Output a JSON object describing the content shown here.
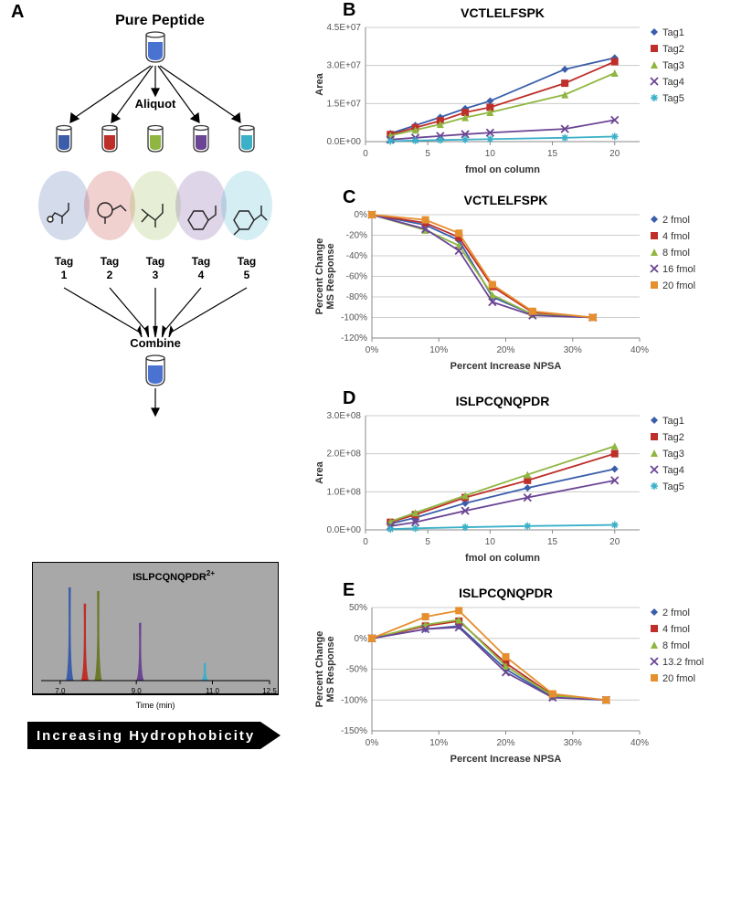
{
  "palette": {
    "tag1": "#3a5eaa",
    "tag2": "#be2f2a",
    "tag3": "#8fb641",
    "tag4": "#6b4594",
    "tag5": "#3bb0c8",
    "axis": "#888888",
    "grid": "#d0d0d0",
    "bg": "#ffffff",
    "chromo_bg": "#a8a8a8"
  },
  "markers": {
    "tag1": "diamond",
    "tag2": "square",
    "tag3": "triangle",
    "tag4": "x",
    "tag5": "asterisk"
  },
  "panelA": {
    "label": "A",
    "title": "Pure Peptide",
    "aliquot_label": "Aliquot",
    "tags": [
      "Tag 1",
      "Tag 2",
      "Tag 3",
      "Tag 4",
      "Tag 5"
    ],
    "combine_label": "Combine",
    "chromo_title": "ISLPCQNQPDR",
    "chromo_charge": "2+",
    "chromo_xlabel": "Time (min)",
    "chromo_xticks": [
      "7.0",
      "9.0",
      "11.0",
      "12.5"
    ],
    "chromo_peaks": [
      {
        "x": 7.25,
        "h": 0.97,
        "color": "#3a5eaa"
      },
      {
        "x": 7.65,
        "h": 0.8,
        "color": "#be2f2a"
      },
      {
        "x": 8.0,
        "h": 0.93,
        "color": "#6b7a2a"
      },
      {
        "x": 9.1,
        "h": 0.6,
        "color": "#6b4594"
      },
      {
        "x": 10.8,
        "h": 0.18,
        "color": "#3bb0c8"
      }
    ],
    "arrow_text": "Increasing   Hydrophobicity"
  },
  "panelB": {
    "label": "B",
    "title": "VCTLELFSPK",
    "xlabel": "fmol on column",
    "ylabel": "Area",
    "xlim": [
      0,
      22
    ],
    "xticks": [
      0,
      5,
      10,
      15,
      20
    ],
    "ylim": [
      0,
      45000000.0
    ],
    "yticks": [
      0,
      15000000.0,
      30000000.0,
      45000000.0
    ],
    "ytick_labels": [
      "0.0E+00",
      "1.5E+07",
      "3.0E+07",
      "4.5E+07"
    ],
    "legend": [
      "Tag1",
      "Tag2",
      "Tag3",
      "Tag4",
      "Tag5"
    ],
    "legend_colors": [
      "#3a5eaa",
      "#be2f2a",
      "#8fb641",
      "#6b4594",
      "#3bb0c8"
    ],
    "legend_markers": [
      "diamond",
      "square",
      "triangle",
      "x",
      "asterisk"
    ],
    "series": [
      {
        "name": "Tag1",
        "color": "#3a5eaa",
        "marker": "diamond",
        "x": [
          2,
          4,
          6,
          8,
          10,
          16,
          20
        ],
        "y": [
          3200000.0,
          6400000.0,
          9600000.0,
          13000000.0,
          16000000.0,
          28500000.0,
          33000000.0
        ]
      },
      {
        "name": "Tag2",
        "color": "#be2f2a",
        "marker": "square",
        "x": [
          2,
          4,
          6,
          8,
          10,
          16,
          20
        ],
        "y": [
          2800000.0,
          5500000.0,
          8200000.0,
          11500000.0,
          13500000.0,
          23000000.0,
          31500000.0
        ]
      },
      {
        "name": "Tag3",
        "color": "#8fb641",
        "marker": "triangle",
        "x": [
          2,
          4,
          6,
          8,
          10,
          16,
          20
        ],
        "y": [
          2400000.0,
          4600000.0,
          6800000.0,
          9500000.0,
          11500000.0,
          18500000.0,
          27000000.0
        ]
      },
      {
        "name": "Tag4",
        "color": "#6b4594",
        "marker": "x",
        "x": [
          2,
          4,
          6,
          8,
          10,
          16,
          20
        ],
        "y": [
          800000.0,
          1500000.0,
          2200000.0,
          2900000.0,
          3500000.0,
          5000000.0,
          8500000.0
        ]
      },
      {
        "name": "Tag5",
        "color": "#3bb0c8",
        "marker": "asterisk",
        "x": [
          2,
          4,
          6,
          8,
          10,
          16,
          20
        ],
        "y": [
          200000.0,
          400000.0,
          600000.0,
          800000.0,
          1000000.0,
          1500000.0,
          2000000.0
        ]
      }
    ]
  },
  "panelC": {
    "label": "C",
    "title": "VCTLELFSPK",
    "xlabel": "Percent Increase NPSA",
    "ylabel": "Percent Change MS Response",
    "xlim": [
      0,
      40
    ],
    "xticks": [
      0,
      10,
      20,
      30,
      40
    ],
    "xtick_labels": [
      "0%",
      "10%",
      "20%",
      "30%",
      "40%"
    ],
    "ylim": [
      -120,
      0
    ],
    "yticks": [
      0,
      -20,
      -40,
      -60,
      -80,
      -100,
      -120
    ],
    "ytick_labels": [
      "0%",
      "-20%",
      "-40%",
      "-60%",
      "-80%",
      "-100%",
      "-120%"
    ],
    "legend": [
      "2 fmol",
      "4 fmol",
      "8 fmol",
      "16 fmol",
      "20 fmol"
    ],
    "legend_colors": [
      "#3a5eaa",
      "#be2f2a",
      "#8fb641",
      "#6b4594",
      "#e58f2e"
    ],
    "legend_markers": [
      "diamond",
      "square",
      "triangle",
      "x",
      "square"
    ],
    "series": [
      {
        "name": "2 fmol",
        "color": "#3a5eaa",
        "marker": "diamond",
        "x": [
          0,
          8,
          13,
          18,
          24,
          33
        ],
        "y": [
          0,
          -10,
          -25,
          -80,
          -97,
          -100
        ]
      },
      {
        "name": "4 fmol",
        "color": "#be2f2a",
        "marker": "square",
        "x": [
          0,
          8,
          13,
          18,
          24,
          33
        ],
        "y": [
          0,
          -8,
          -22,
          -70,
          -95,
          -100
        ]
      },
      {
        "name": "8 fmol",
        "color": "#8fb641",
        "marker": "triangle",
        "x": [
          0,
          8,
          13,
          18,
          24,
          33
        ],
        "y": [
          0,
          -15,
          -30,
          -78,
          -97,
          -100
        ]
      },
      {
        "name": "16 fmol",
        "color": "#6b4594",
        "marker": "x",
        "x": [
          0,
          8,
          13,
          18,
          24,
          33
        ],
        "y": [
          0,
          -14,
          -35,
          -85,
          -98,
          -100
        ]
      },
      {
        "name": "20 fmol",
        "color": "#e58f2e",
        "marker": "square",
        "x": [
          0,
          8,
          13,
          18,
          24,
          33
        ],
        "y": [
          0,
          -5,
          -18,
          -68,
          -94,
          -100
        ]
      }
    ]
  },
  "panelD": {
    "label": "D",
    "title": "ISLPCQNQPDR",
    "xlabel": "fmol on column",
    "ylabel": "Area",
    "xlim": [
      0,
      22
    ],
    "xticks": [
      0,
      5,
      10,
      15,
      20
    ],
    "ylim": [
      0,
      300000000.0
    ],
    "yticks": [
      0,
      100000000.0,
      200000000.0,
      300000000.0
    ],
    "ytick_labels": [
      "0.0E+00",
      "1.0E+08",
      "2.0E+08",
      "3.0E+08"
    ],
    "legend": [
      "Tag1",
      "Tag2",
      "Tag3",
      "Tag4",
      "Tag5"
    ],
    "legend_colors": [
      "#3a5eaa",
      "#be2f2a",
      "#8fb641",
      "#6b4594",
      "#3bb0c8"
    ],
    "legend_markers": [
      "diamond",
      "square",
      "triangle",
      "x",
      "asterisk"
    ],
    "series": [
      {
        "name": "Tag1",
        "color": "#3a5eaa",
        "marker": "diamond",
        "x": [
          2,
          4,
          8,
          13,
          20
        ],
        "y": [
          16000000.0,
          32000000.0,
          70000000.0,
          110000000.0,
          160000000.0
        ]
      },
      {
        "name": "Tag2",
        "color": "#be2f2a",
        "marker": "square",
        "x": [
          2,
          4,
          8,
          13,
          20
        ],
        "y": [
          20000000.0,
          40000000.0,
          85000000.0,
          130000000.0,
          200000000.0
        ]
      },
      {
        "name": "Tag3",
        "color": "#8fb641",
        "marker": "triangle",
        "x": [
          2,
          4,
          8,
          13,
          20
        ],
        "y": [
          22000000.0,
          45000000.0,
          90000000.0,
          145000000.0,
          220000000.0
        ]
      },
      {
        "name": "Tag4",
        "color": "#6b4594",
        "marker": "x",
        "x": [
          2,
          4,
          8,
          13,
          20
        ],
        "y": [
          10000000.0,
          20000000.0,
          50000000.0,
          85000000.0,
          130000000.0
        ]
      },
      {
        "name": "Tag5",
        "color": "#3bb0c8",
        "marker": "asterisk",
        "x": [
          2,
          4,
          8,
          13,
          20
        ],
        "y": [
          2000000.0,
          4000000.0,
          7000000.0,
          10000000.0,
          13000000.0
        ]
      }
    ]
  },
  "panelE": {
    "label": "E",
    "title": "ISLPCQNQPDR",
    "xlabel": "Percent Increase NPSA",
    "ylabel": "Percent Change MS Response",
    "xlim": [
      0,
      40
    ],
    "xticks": [
      0,
      10,
      20,
      30,
      40
    ],
    "xtick_labels": [
      "0%",
      "10%",
      "20%",
      "30%",
      "40%"
    ],
    "ylim": [
      -150,
      50
    ],
    "yticks": [
      50,
      0,
      -50,
      -100,
      -150
    ],
    "ytick_labels": [
      "50%",
      "0%",
      "-50%",
      "-100%",
      "-150%"
    ],
    "legend": [
      "2 fmol",
      "4 fmol",
      "8 fmol",
      "13.2 fmol",
      "20 fmol"
    ],
    "legend_colors": [
      "#3a5eaa",
      "#be2f2a",
      "#8fb641",
      "#6b4594",
      "#e58f2e"
    ],
    "legend_markers": [
      "diamond",
      "square",
      "triangle",
      "x",
      "square"
    ],
    "series": [
      {
        "name": "2 fmol",
        "color": "#3a5eaa",
        "marker": "diamond",
        "x": [
          0,
          8,
          13,
          20,
          27,
          35
        ],
        "y": [
          0,
          15,
          20,
          -50,
          -95,
          -100
        ]
      },
      {
        "name": "4 fmol",
        "color": "#be2f2a",
        "marker": "square",
        "x": [
          0,
          8,
          13,
          20,
          27,
          35
        ],
        "y": [
          0,
          20,
          28,
          -40,
          -92,
          -100
        ]
      },
      {
        "name": "8 fmol",
        "color": "#8fb641",
        "marker": "triangle",
        "x": [
          0,
          8,
          13,
          20,
          27,
          35
        ],
        "y": [
          0,
          22,
          30,
          -45,
          -93,
          -100
        ]
      },
      {
        "name": "13.2 fmol",
        "color": "#6b4594",
        "marker": "x",
        "x": [
          0,
          8,
          13,
          20,
          27,
          35
        ],
        "y": [
          0,
          15,
          18,
          -55,
          -96,
          -100
        ]
      },
      {
        "name": "20 fmol",
        "color": "#e58f2e",
        "marker": "square",
        "x": [
          0,
          8,
          13,
          20,
          27,
          35
        ],
        "y": [
          0,
          35,
          45,
          -30,
          -90,
          -100
        ]
      }
    ]
  }
}
